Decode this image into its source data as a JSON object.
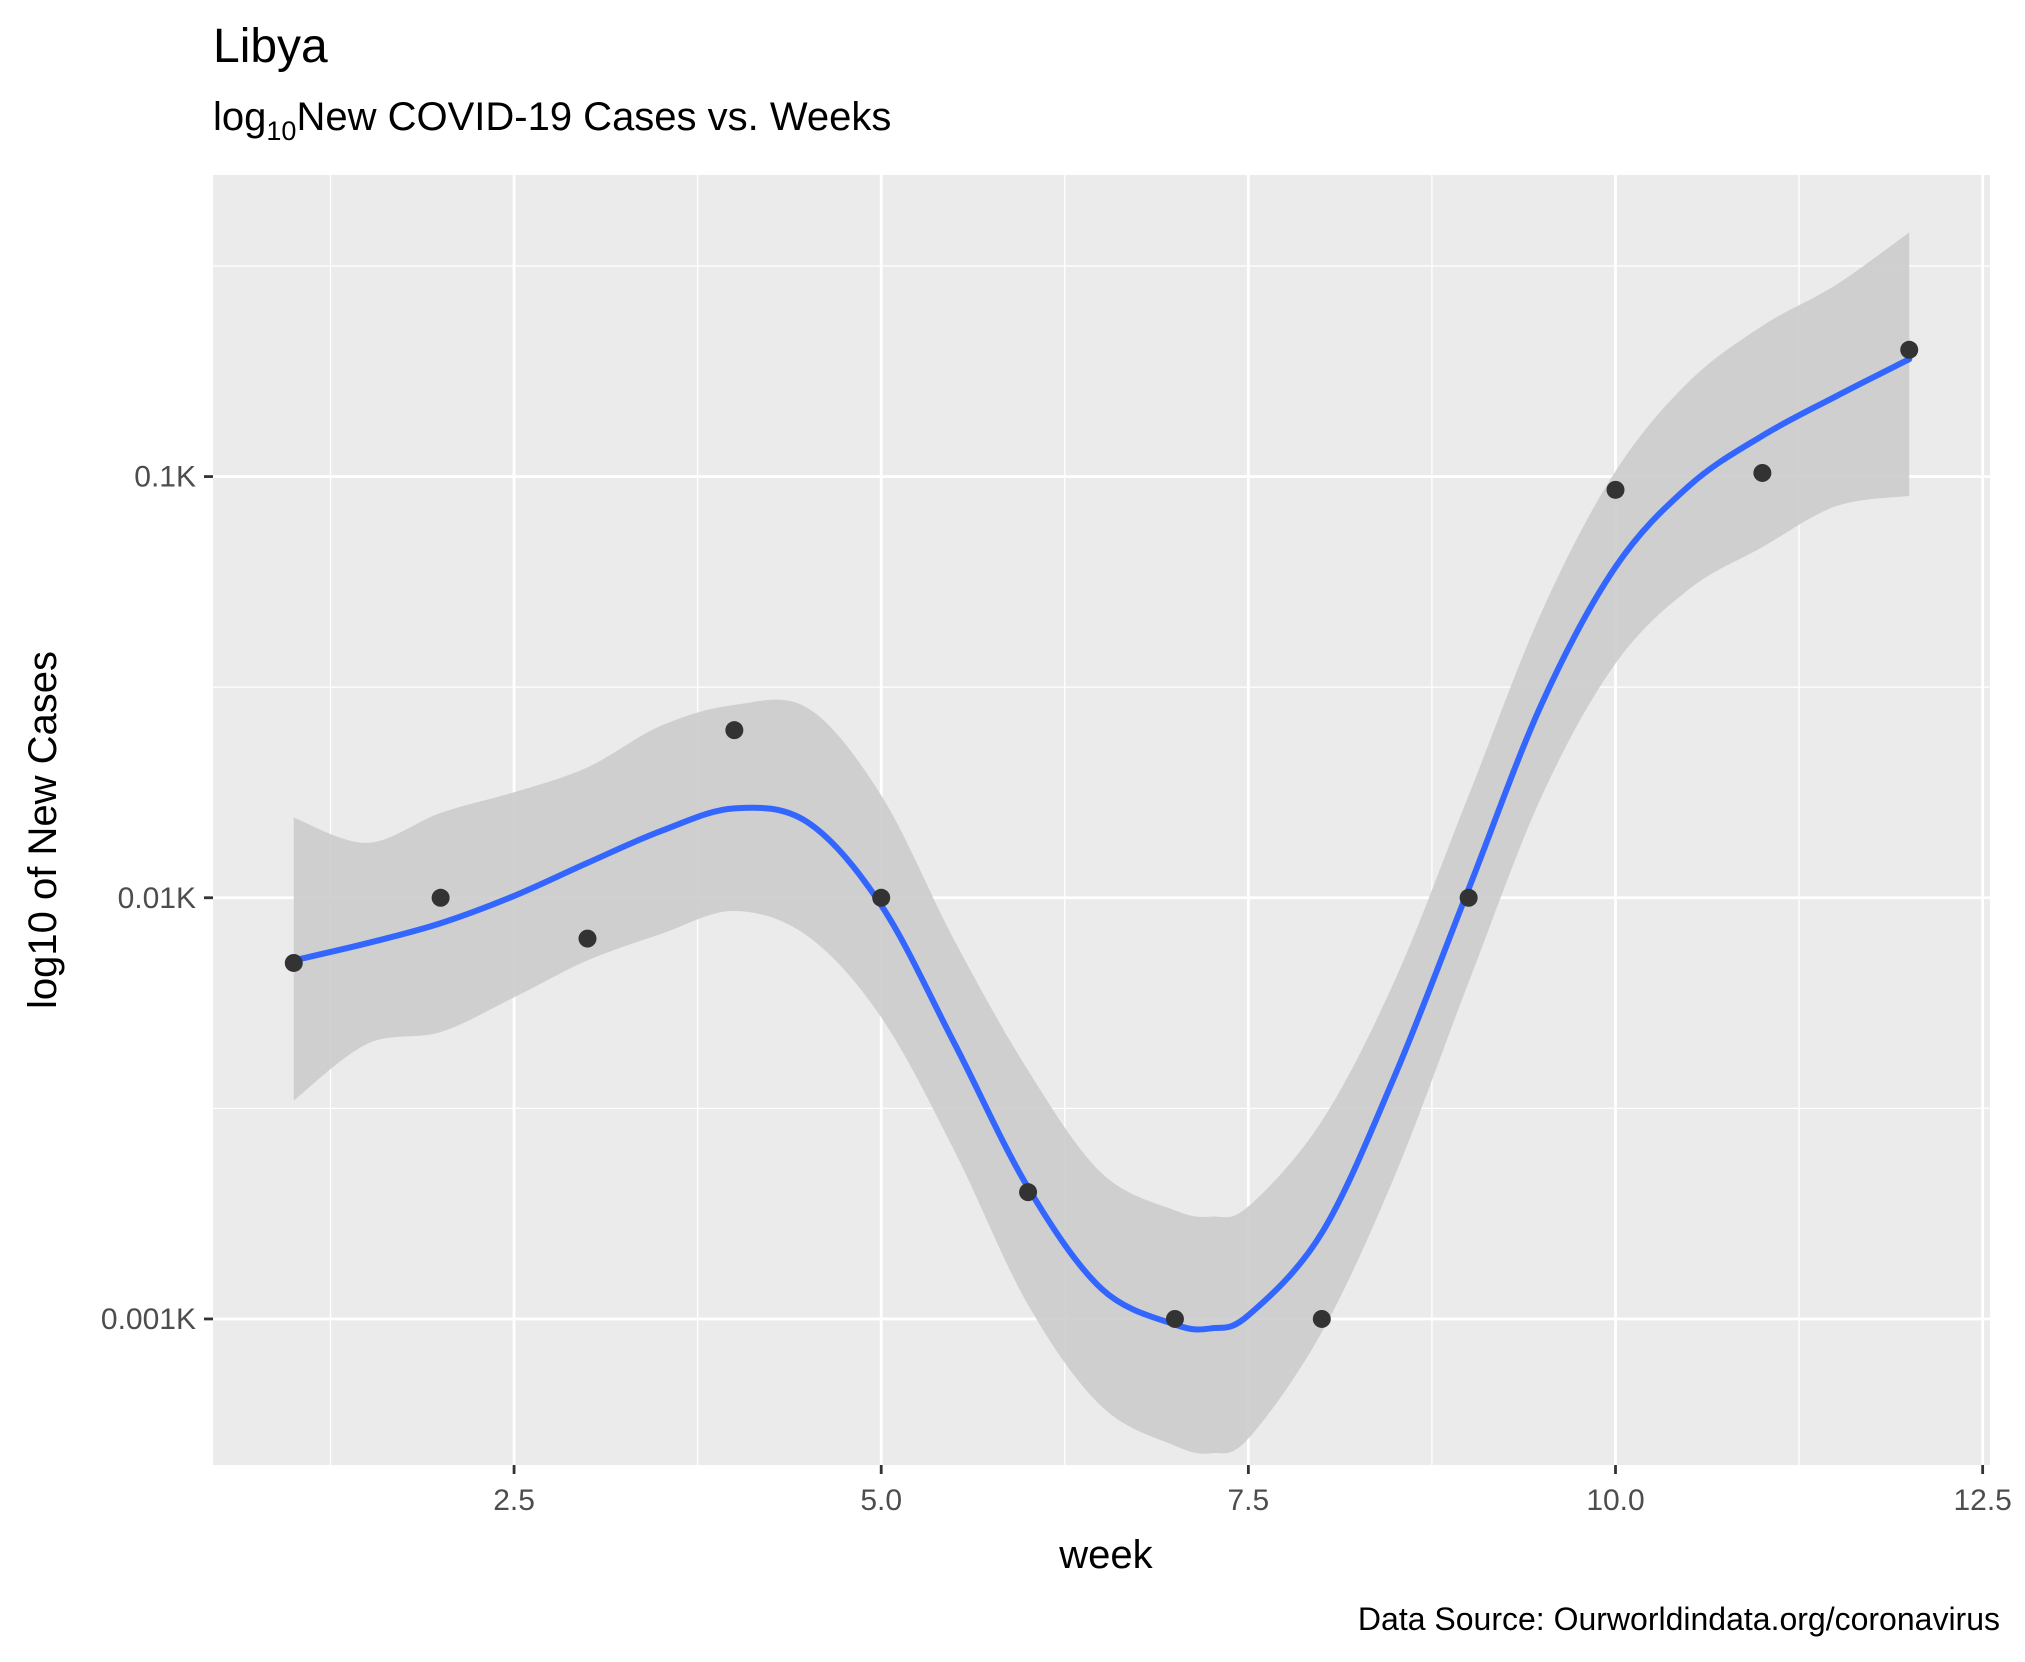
{
  "chart_data": {
    "type": "scatter",
    "title": "Libya",
    "subtitle_base": "log",
    "subtitle_sub": "10",
    "subtitle_rest": "New COVID-19 Cases vs. Weeks",
    "xlabel": "week",
    "ylabel": "log10 of New Cases",
    "caption": "Data Source: Ourworldindata.org/coronavirus",
    "log_scale_y": true,
    "grid": true,
    "xlim": [
      0.45,
      12.55
    ],
    "ylim": [
      0.00045,
      0.52
    ],
    "x_ticks": [
      {
        "value": 2.5,
        "label": "2.5"
      },
      {
        "value": 5.0,
        "label": "5.0"
      },
      {
        "value": 7.5,
        "label": "7.5"
      },
      {
        "value": 10.0,
        "label": "10.0"
      },
      {
        "value": 12.5,
        "label": "12.5"
      }
    ],
    "y_ticks": [
      {
        "value": 0.1,
        "label": "0.1K"
      },
      {
        "value": 0.01,
        "label": "0.01K"
      },
      {
        "value": 0.001,
        "label": "0.001K"
      }
    ],
    "points": {
      "x": [
        1,
        2,
        3,
        4,
        5,
        6,
        7,
        8,
        9,
        10,
        11,
        12
      ],
      "y": [
        0.007,
        0.01,
        0.008,
        0.025,
        0.01,
        0.002,
        0.001,
        0.001,
        0.01,
        0.093,
        0.102,
        0.2
      ]
    },
    "smooth": {
      "x": [
        1,
        1.5,
        2,
        2.5,
        3,
        3.5,
        4,
        4.5,
        5,
        5.5,
        6,
        6.5,
        7,
        7.25,
        7.5,
        8,
        8.5,
        9,
        9.5,
        10,
        10.5,
        11,
        11.5,
        12
      ],
      "y": [
        0.0071,
        0.0078,
        0.0087,
        0.0101,
        0.0121,
        0.0144,
        0.0163,
        0.0151,
        0.0096,
        0.0045,
        0.00205,
        0.00118,
        0.00097,
        0.00095,
        0.00102,
        0.0016,
        0.0038,
        0.0105,
        0.029,
        0.061,
        0.095,
        0.125,
        0.155,
        0.19
      ]
    },
    "band": {
      "x": [
        1,
        1.5,
        2,
        2.5,
        3,
        3.5,
        4,
        4.5,
        5,
        5.5,
        6,
        6.5,
        7,
        7.25,
        7.5,
        8,
        8.5,
        9,
        9.5,
        10,
        10.5,
        11,
        11.5,
        12
      ],
      "lower": [
        0.0033,
        0.0045,
        0.0048,
        0.0058,
        0.0071,
        0.0082,
        0.0093,
        0.0081,
        0.0052,
        0.0025,
        0.00108,
        0.00062,
        0.0005,
        0.00048,
        0.00052,
        0.00093,
        0.0022,
        0.0063,
        0.0175,
        0.036,
        0.054,
        0.068,
        0.085,
        0.09
      ],
      "upper": [
        0.0155,
        0.0135,
        0.0159,
        0.0178,
        0.0204,
        0.0256,
        0.0287,
        0.0282,
        0.0175,
        0.0079,
        0.00389,
        0.00222,
        0.00181,
        0.00175,
        0.00185,
        0.00295,
        0.0064,
        0.0175,
        0.048,
        0.103,
        0.168,
        0.228,
        0.285,
        0.38
      ]
    },
    "colors": {
      "panel": "#ebebeb",
      "grid_major": "#ffffff",
      "band": "#cccccc",
      "line": "#3366ff",
      "points": "#333333",
      "ticks": "#333333"
    }
  }
}
